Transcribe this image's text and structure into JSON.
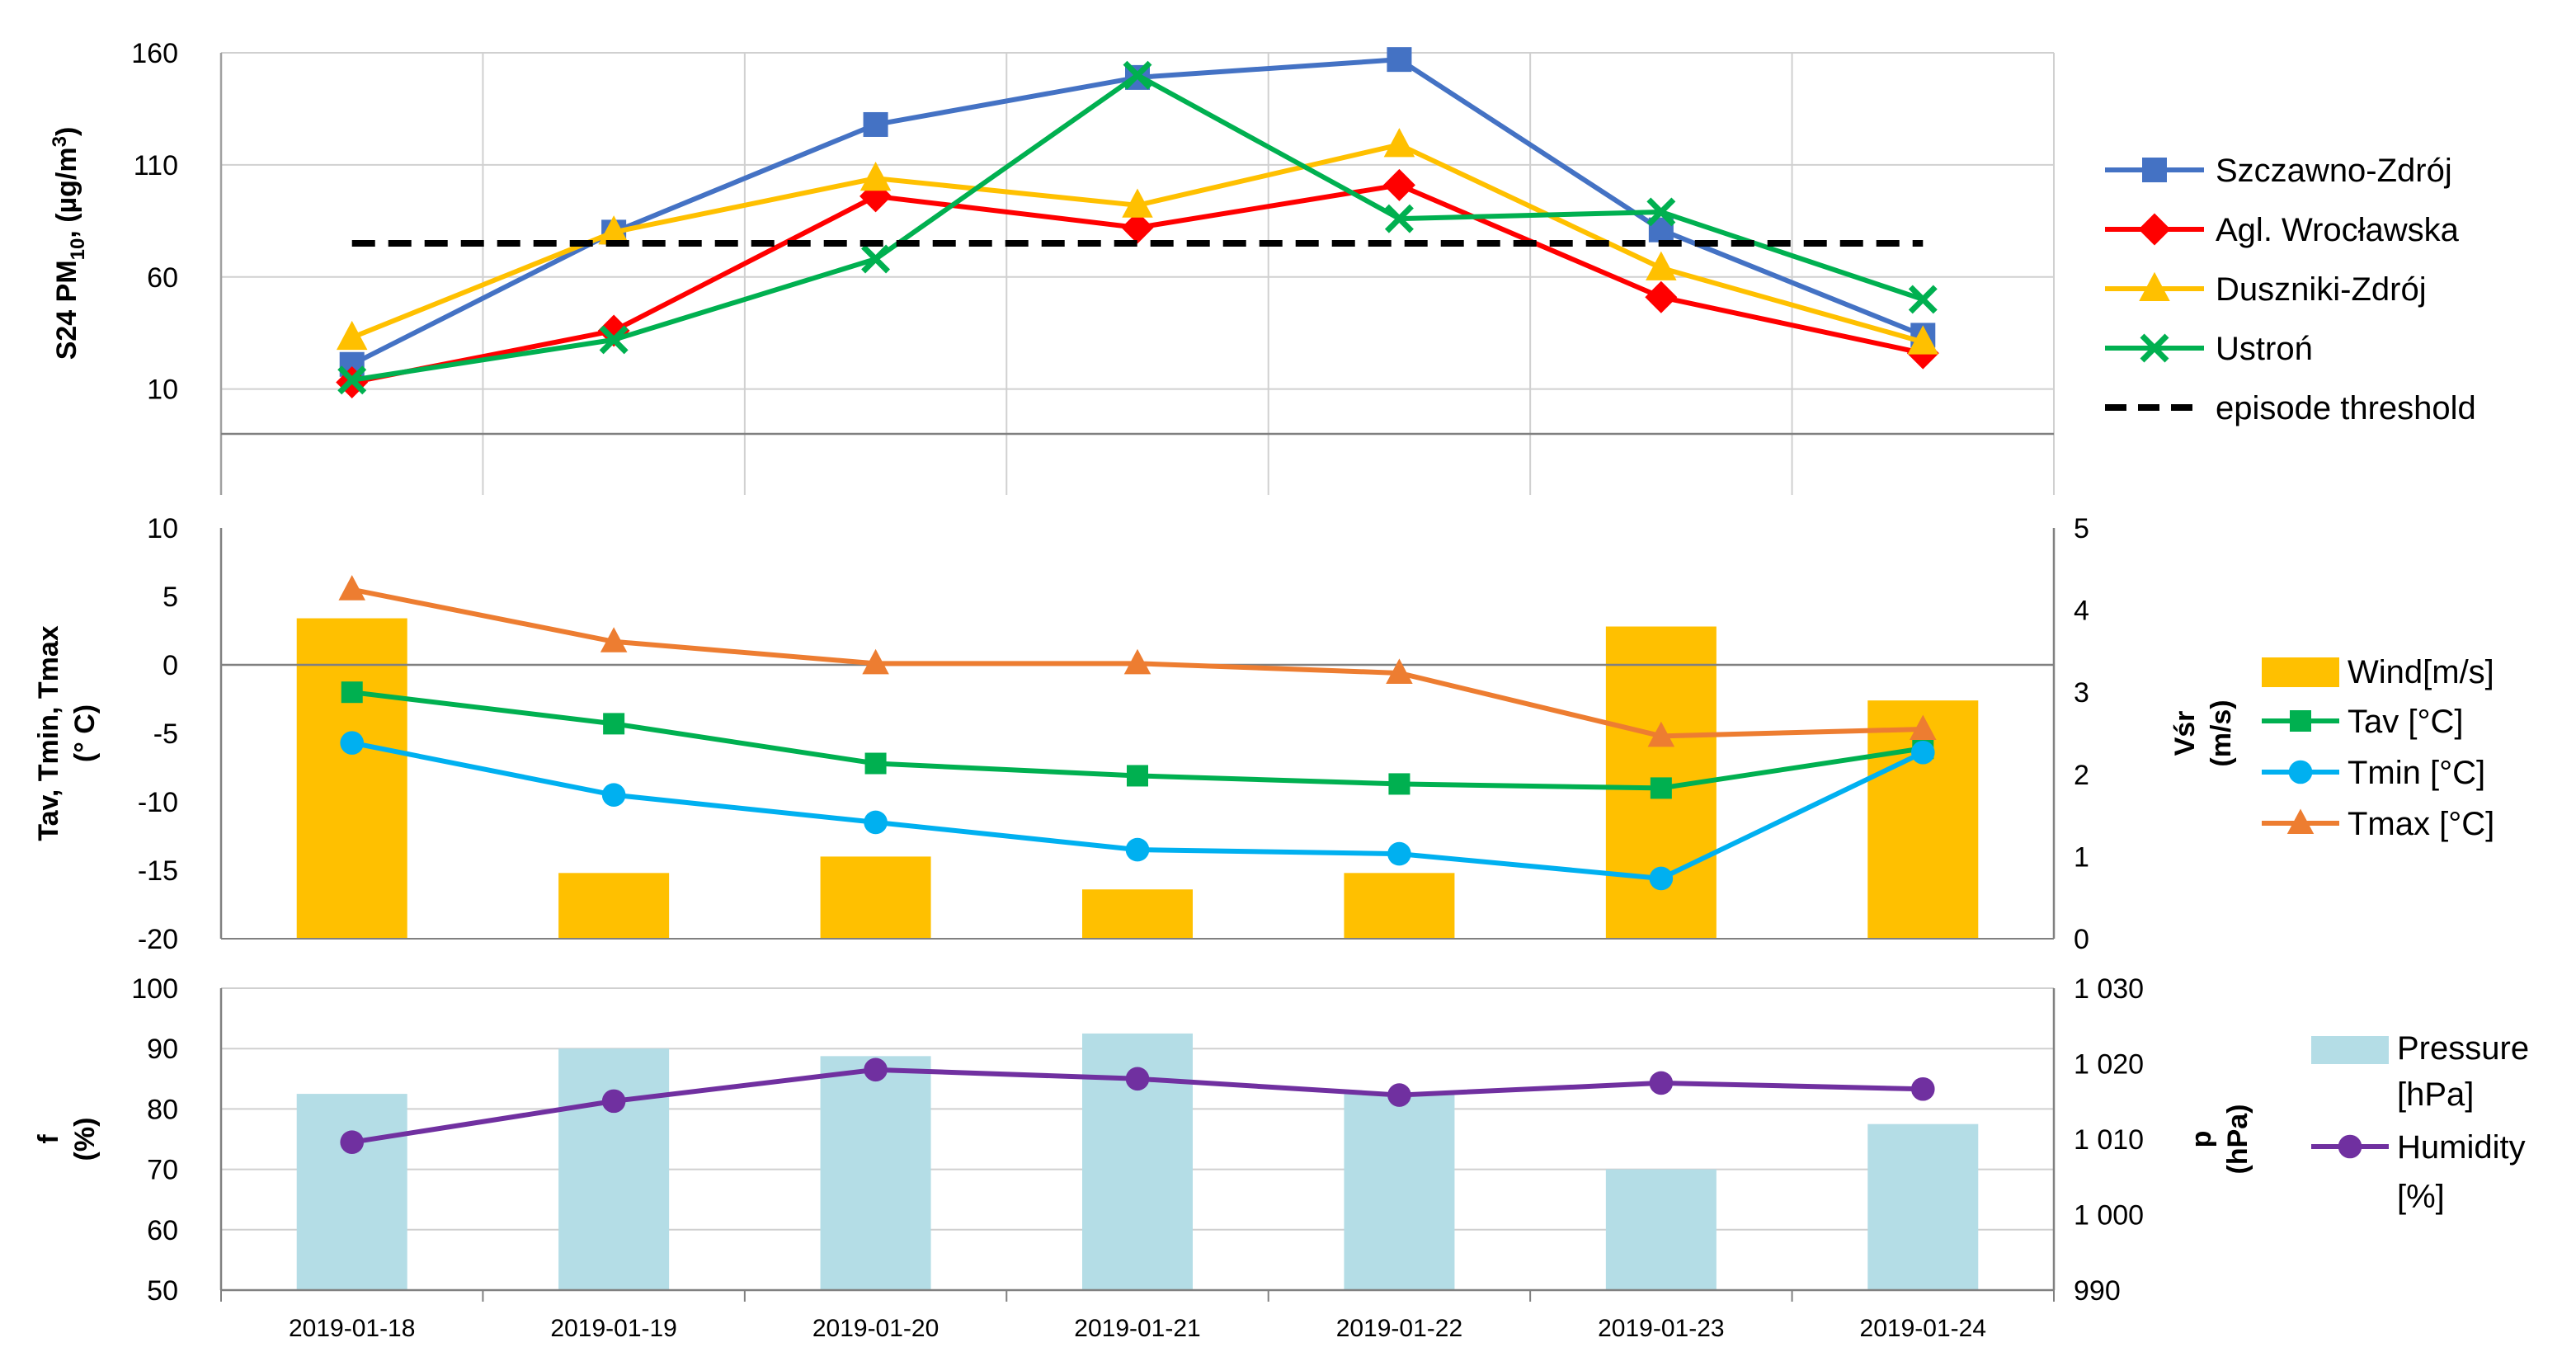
{
  "chart_data": {
    "type": "multi-panel",
    "x_categories": [
      "2019-01-18",
      "2019-01-19",
      "2019-01-20",
      "2019-01-21",
      "2019-01-22",
      "2019-01-23",
      "2019-01-24"
    ],
    "panels": [
      {
        "id": "pm10",
        "type": "line",
        "ylabel": "S24 PM10, (µg/m³)",
        "ylabel_parts": {
          "main": "S24 PM",
          "sub": "10",
          "rest": ", (µg/m",
          "sup": "3",
          "end": ")"
        },
        "ylim": [
          -10,
          160
        ],
        "yticks": [
          10,
          60,
          110,
          160
        ],
        "grid": true,
        "series": [
          {
            "name": "Szczawno-Zdrój",
            "color": "#4472C4",
            "marker": "square",
            "values": [
              21,
              80,
              128,
              149,
              157,
              81,
              34
            ]
          },
          {
            "name": "Agl. Wrocławska",
            "color": "#FF0000",
            "marker": "diamond",
            "values": [
              13,
              36,
              96,
              82,
              101,
              51,
              26
            ]
          },
          {
            "name": "Duszniki-Zdrój",
            "color": "#FFC000",
            "marker": "triangle",
            "values": [
              33,
              80,
              104,
              92,
              119,
              64,
              31
            ]
          },
          {
            "name": "Ustroń",
            "color": "#00B050",
            "marker": "x",
            "values": [
              14,
              32,
              68,
              150,
              86,
              89,
              50
            ]
          },
          {
            "name": "episode threshold",
            "color": "#000000",
            "marker": "none",
            "dashed": true,
            "values": [
              75,
              75,
              75,
              75,
              75,
              75,
              75
            ]
          }
        ]
      },
      {
        "id": "temp-wind",
        "type": "bar+line",
        "ylabel_lines": [
          "Tav, Tmin, Tmax",
          "(° C)"
        ],
        "ylim": [
          -20,
          10
        ],
        "yticks": [
          -20,
          -15,
          -10,
          -5,
          0,
          5,
          10
        ],
        "y2label_lines": [
          "Vśr",
          "(m/s)"
        ],
        "y2lim": [
          0,
          5
        ],
        "y2ticks": [
          0,
          1,
          2,
          3,
          4,
          5
        ],
        "bars": {
          "name": "Wind[m/s]",
          "color": "#FFC000",
          "values": [
            3.9,
            0.8,
            1.0,
            0.6,
            0.8,
            3.8,
            2.9
          ]
        },
        "series": [
          {
            "name": "Tav [°C]",
            "color": "#00B050",
            "marker": "square",
            "values": [
              -2.0,
              -4.3,
              -7.2,
              -8.1,
              -8.7,
              -9.0,
              -6.1
            ]
          },
          {
            "name": "Tmin [°C]",
            "color": "#00B0F0",
            "marker": "circle",
            "values": [
              -5.7,
              -9.5,
              -11.5,
              -13.5,
              -13.8,
              -15.6,
              -6.4
            ]
          },
          {
            "name": "Tmax [°C]",
            "color": "#ED7D31",
            "marker": "triangle",
            "values": [
              5.5,
              1.7,
              0.1,
              0.1,
              -0.6,
              -5.2,
              -4.7
            ]
          }
        ]
      },
      {
        "id": "humidity-pressure",
        "type": "bar+line",
        "ylabel_lines": [
          "f",
          "(%)"
        ],
        "ylim": [
          50,
          100
        ],
        "yticks": [
          50,
          60,
          70,
          80,
          90,
          100
        ],
        "y2label_lines": [
          "p",
          "(hPa)"
        ],
        "y2lim": [
          990,
          1030
        ],
        "y2ticks": [
          990,
          1000,
          1010,
          1020,
          1030
        ],
        "y2ticklabels": [
          "990",
          "1 000",
          "1 010",
          "1 020",
          "1 030"
        ],
        "bars": {
          "name": "Pressure [hPa]",
          "legend_lines": [
            "Pressure",
            "[hPa]"
          ],
          "color": "#B4DDE6",
          "values": [
            1016,
            1022,
            1021,
            1024,
            1016,
            1006,
            1012
          ]
        },
        "series": [
          {
            "name": "Humidity [%]",
            "legend_lines": [
              "Humidity",
              "[%]"
            ],
            "color": "#7030A0",
            "marker": "circle",
            "values": [
              74.5,
              81.3,
              86.5,
              85.0,
              82.3,
              84.3,
              83.3
            ]
          }
        ]
      }
    ]
  }
}
